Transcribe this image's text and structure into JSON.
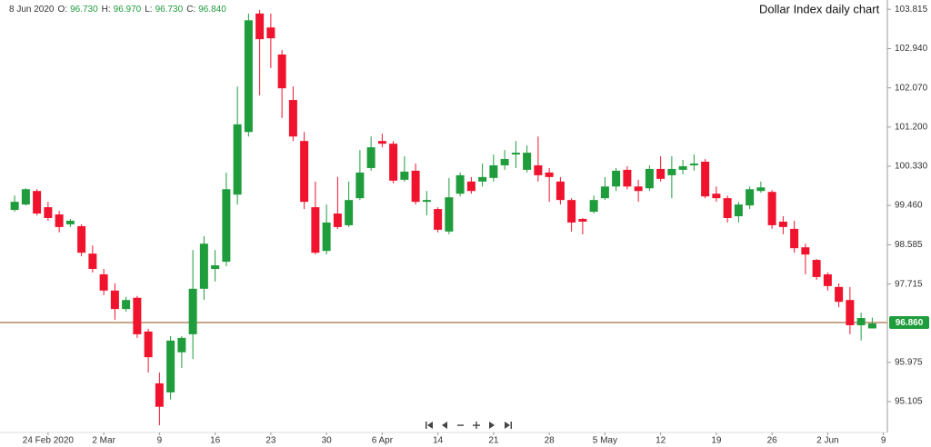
{
  "chart_data": {
    "type": "candlestick",
    "title": "Dollar Index daily chart",
    "header": {
      "date": "8 Jun 2020",
      "fields": [
        {
          "label": "O:",
          "value": "96.730"
        },
        {
          "label": "H:",
          "value": "96.970"
        },
        {
          "label": "L:",
          "value": "96.730"
        },
        {
          "label": "C:",
          "value": "96.840"
        }
      ]
    },
    "categories": [
      null,
      null,
      null,
      "24 Feb 2020",
      null,
      null,
      null,
      null,
      "2 Mar",
      null,
      null,
      null,
      null,
      "9",
      null,
      null,
      null,
      null,
      "16",
      null,
      null,
      null,
      null,
      "23",
      null,
      null,
      null,
      null,
      "30",
      null,
      null,
      null,
      null,
      "6 Apr",
      null,
      null,
      null,
      null,
      "14",
      null,
      null,
      null,
      null,
      "21",
      null,
      null,
      null,
      null,
      "28",
      null,
      null,
      null,
      null,
      "5 May",
      null,
      null,
      null,
      null,
      "12",
      null,
      null,
      null,
      null,
      "19",
      null,
      null,
      null,
      null,
      "26",
      null,
      null,
      null,
      null,
      "2 Jun",
      null,
      null,
      null,
      null,
      "9"
    ],
    "open": [
      99.36,
      99.48,
      99.78,
      99.42,
      99.26,
      99.04,
      99.0,
      98.39,
      97.93,
      97.57,
      97.16,
      97.41,
      96.66,
      95.51,
      95.31,
      96.2,
      96.6,
      97.61,
      98.05,
      98.21,
      99.7,
      101.09,
      103.72,
      103.41,
      102.81,
      101.8,
      100.89,
      99.42,
      98.45,
      99.28,
      99.02,
      99.62,
      100.29,
      100.89,
      100.83,
      100.03,
      100.23,
      99.54,
      99.38,
      98.88,
      99.72,
      99.99,
      99.99,
      100.07,
      100.35,
      100.59,
      100.25,
      100.35,
      100.19,
      99.99,
      99.58,
      99.16,
      99.32,
      99.62,
      99.88,
      100.25,
      99.88,
      99.84,
      100.27,
      100.13,
      100.25,
      100.35,
      100.43,
      99.72,
      99.62,
      99.22,
      99.46,
      99.78,
      99.76,
      99.1,
      98.94,
      98.53,
      98.25,
      97.93,
      97.65,
      97.36,
      96.8,
      96.73,
      null
    ],
    "high": [
      99.68,
      99.84,
      99.82,
      99.54,
      99.34,
      99.16,
      99.04,
      98.57,
      98.05,
      97.73,
      97.43,
      97.45,
      96.72,
      95.75,
      96.56,
      96.56,
      98.47,
      98.78,
      98.47,
      100.19,
      102.1,
      103.72,
      103.8,
      103.72,
      102.91,
      102.1,
      101.09,
      99.99,
      99.48,
      100.09,
      99.99,
      100.69,
      100.99,
      101.05,
      100.89,
      100.55,
      100.39,
      99.78,
      99.42,
      100.07,
      100.19,
      100.09,
      100.39,
      100.59,
      100.69,
      100.89,
      100.79,
      100.99,
      100.29,
      100.09,
      99.62,
      99.18,
      99.68,
      100.09,
      100.29,
      100.33,
      100.03,
      100.35,
      100.55,
      100.55,
      100.47,
      100.59,
      100.49,
      99.88,
      99.68,
      99.54,
      99.88,
      99.99,
      99.8,
      99.22,
      99.12,
      98.61,
      98.27,
      97.97,
      97.73,
      97.65,
      97.08,
      96.97,
      null
    ],
    "low": [
      99.32,
      99.46,
      99.24,
      99.12,
      98.86,
      98.98,
      98.33,
      97.97,
      97.47,
      96.92,
      97.1,
      96.52,
      95.75,
      94.58,
      95.15,
      95.85,
      96.05,
      97.36,
      97.77,
      98.11,
      99.48,
      100.99,
      101.9,
      102.51,
      101.4,
      100.89,
      99.38,
      98.37,
      98.37,
      98.94,
      98.98,
      99.58,
      100.23,
      100.75,
      99.95,
      99.99,
      99.48,
      99.24,
      98.86,
      98.82,
      99.66,
      99.72,
      99.88,
      99.99,
      100.25,
      100.29,
      100.19,
      99.99,
      99.54,
      99.48,
      98.88,
      98.82,
      99.28,
      99.58,
      99.78,
      99.82,
      99.54,
      99.78,
      99.99,
      99.62,
      100.15,
      100.23,
      99.62,
      99.54,
      99.08,
      99.08,
      99.38,
      99.74,
      98.94,
      98.82,
      98.41,
      97.93,
      97.81,
      97.57,
      97.2,
      96.6,
      96.46,
      96.73,
      null
    ],
    "close": [
      99.54,
      99.82,
      99.28,
      99.18,
      98.98,
      99.12,
      98.41,
      98.05,
      97.57,
      97.16,
      97.36,
      96.6,
      96.09,
      94.99,
      96.46,
      96.52,
      97.61,
      98.61,
      98.13,
      99.82,
      101.26,
      103.57,
      103.15,
      103.17,
      102.06,
      100.99,
      99.54,
      98.41,
      99.08,
      98.98,
      99.58,
      100.19,
      100.75,
      100.83,
      100.01,
      100.21,
      99.54,
      99.58,
      98.92,
      99.64,
      100.13,
      99.78,
      100.09,
      100.35,
      100.49,
      100.63,
      100.63,
      100.13,
      100.09,
      99.58,
      99.08,
      99.1,
      99.58,
      99.88,
      100.23,
      99.88,
      99.78,
      100.27,
      100.05,
      100.27,
      100.33,
      100.39,
      99.66,
      99.62,
      99.18,
      99.48,
      99.82,
      99.86,
      99.02,
      98.98,
      98.51,
      98.37,
      97.87,
      97.67,
      97.32,
      96.8,
      96.96,
      96.84,
      null
    ],
    "up_color": "#1f9c3c",
    "down_color": "#f0132d",
    "price_line": {
      "value": 96.86,
      "label": "96.860",
      "color": "#c7a88c",
      "label_color": "#1f9c3c"
    },
    "ylim": [
      94.44,
      104.02
    ],
    "yticks": [
      103.815,
      {
        "value": 102.94,
        "label": "102.940"
      },
      {
        "value": 102.07,
        "label": "102.070"
      },
      {
        "value": 101.2,
        "label": "101.200"
      },
      {
        "value": 100.33,
        "label": "100.330"
      },
      {
        "value": 99.46,
        "label": "99.460"
      },
      98.585,
      97.715,
      95.975,
      95.105
    ]
  }
}
